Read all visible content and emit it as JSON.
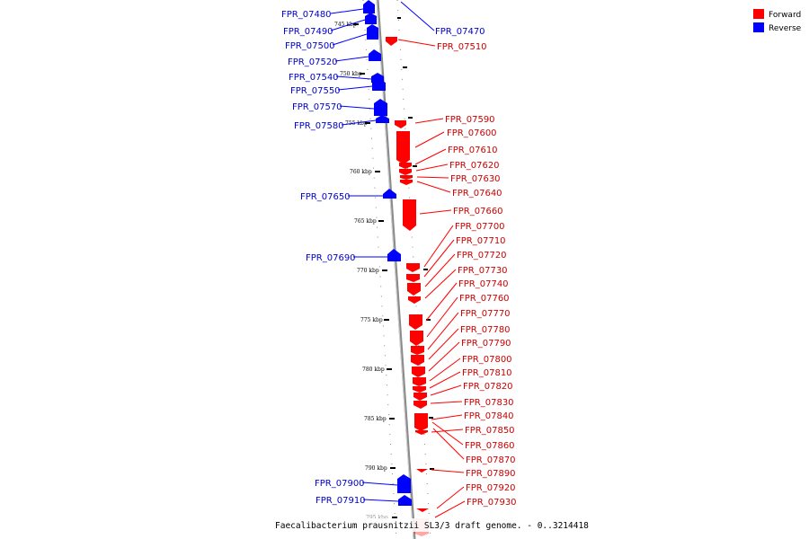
{
  "legend": {
    "forward_label": "Forward",
    "reverse_label": "Reverse",
    "forward_color": "#ff0000",
    "reverse_color": "#0000ff"
  },
  "caption": "Faecalibacterium prausnitzii SL3/3 draft genome. - 0..3214418",
  "scale_labels": [
    "745 kbp",
    "750 kbp",
    "755 kbp",
    "760 kbp",
    "765 kbp",
    "770 kbp",
    "775 kbp",
    "780 kbp",
    "785 kbp",
    "790 kbp",
    "795 kbp"
  ],
  "genes": {
    "reverse": [
      "FPR_07480",
      "FPR_07490",
      "FPR_07500",
      "FPR_07520",
      "FPR_07540",
      "FPR_07550",
      "FPR_07570",
      "FPR_07580",
      "FPR_07650",
      "FPR_07690",
      "FPR_07900",
      "FPR_07910",
      "FPR_07470"
    ],
    "forward": [
      "FPR_07510",
      "FPR_07590",
      "FPR_07600",
      "FPR_07610",
      "FPR_07620",
      "FPR_07630",
      "FPR_07640",
      "FPR_07660",
      "FPR_07700",
      "FPR_07710",
      "FPR_07720",
      "FPR_07730",
      "FPR_07740",
      "FPR_07760",
      "FPR_07770",
      "FPR_07780",
      "FPR_07790",
      "FPR_07800",
      "FPR_07810",
      "FPR_07820",
      "FPR_07830",
      "FPR_07840",
      "FPR_07850",
      "FPR_07860",
      "FPR_07870",
      "FPR_07890",
      "FPR_07920",
      "FPR_07930"
    ]
  }
}
